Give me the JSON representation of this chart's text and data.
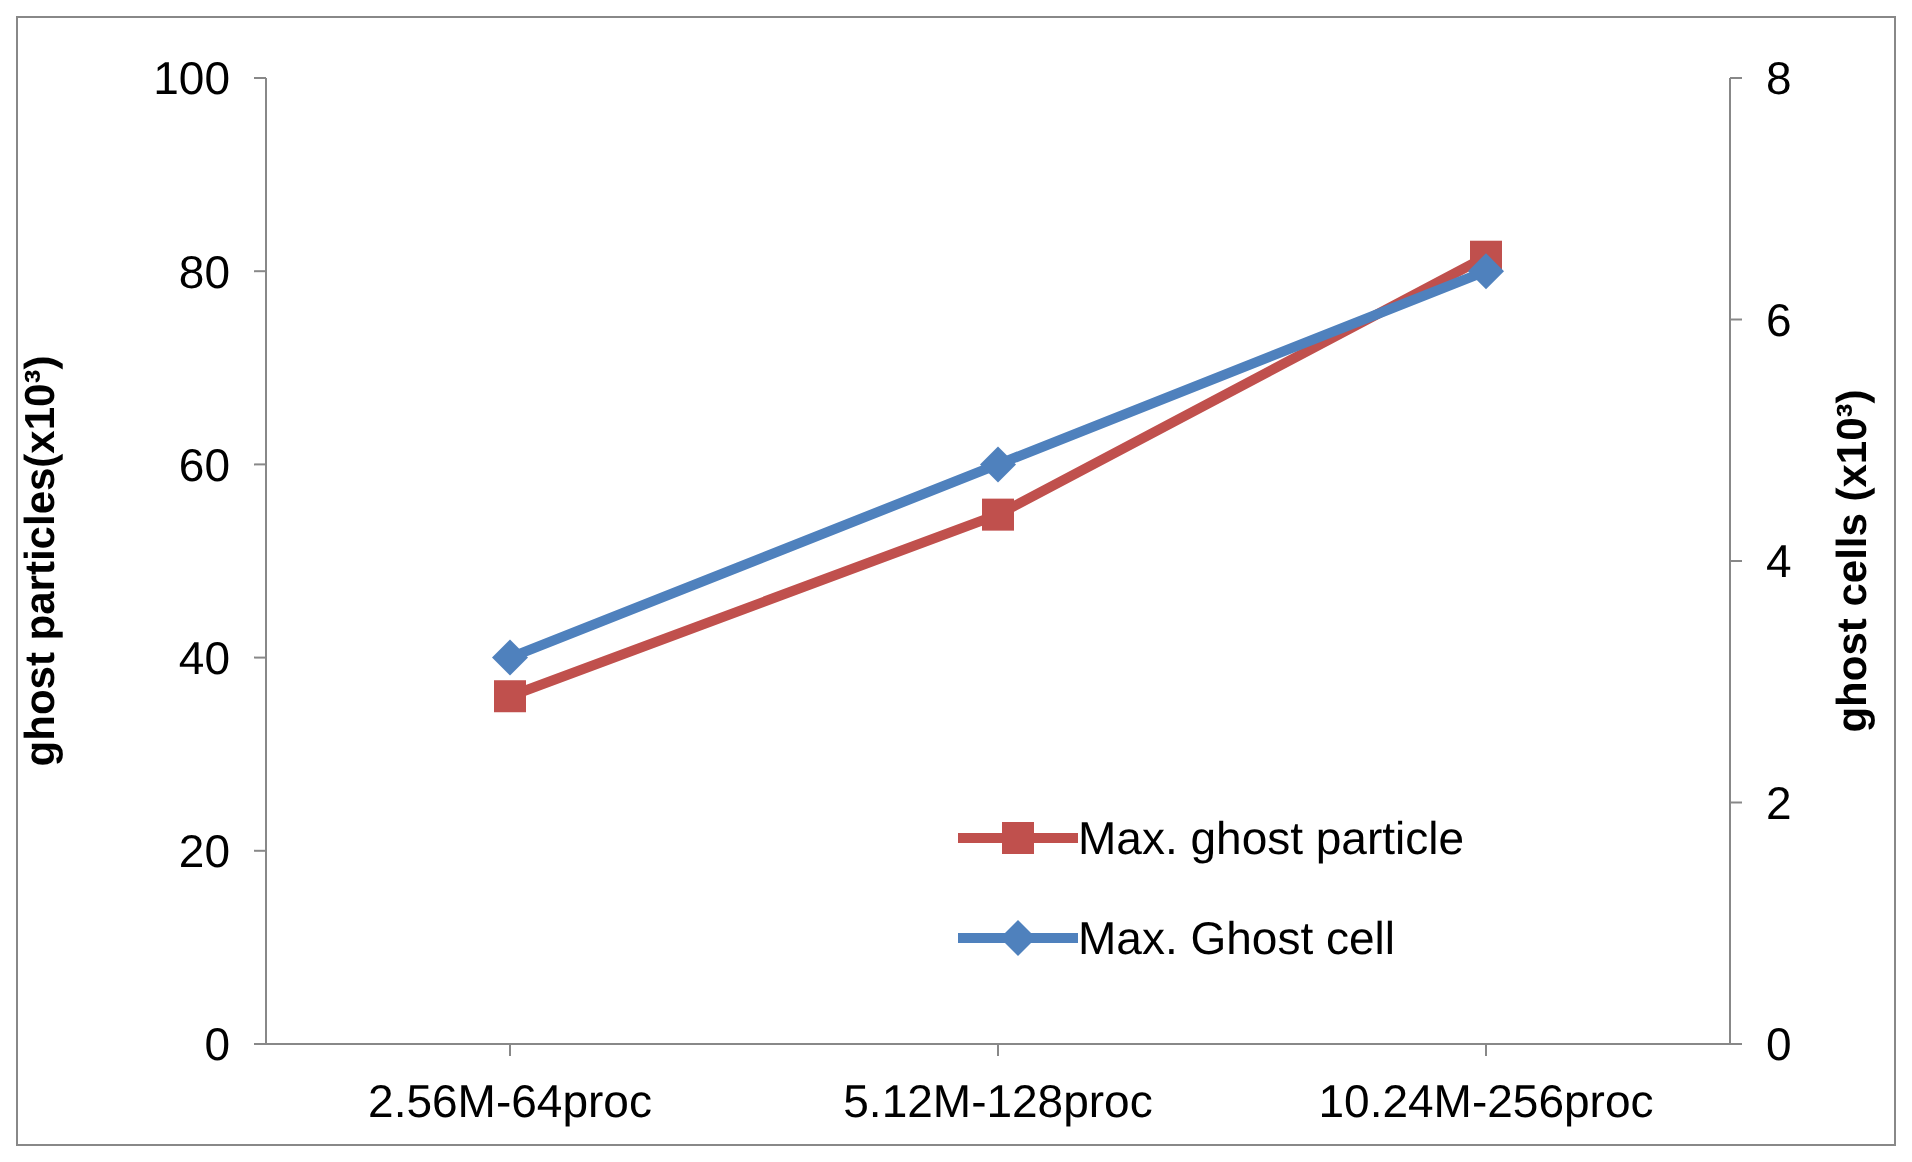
{
  "chart_data": {
    "type": "line",
    "categories": [
      "2.56M-64proc",
      "5.12M-128proc",
      "10.24M-256proc"
    ],
    "ylabel": "ghost particles(x10³)",
    "y2label": "ghost cells (x10³)",
    "ylim": [
      0,
      100
    ],
    "yticks": [
      0,
      20,
      40,
      60,
      80,
      100
    ],
    "y2lim": [
      0,
      8
    ],
    "y2ticks": [
      0,
      2,
      4,
      6,
      8
    ],
    "grid": false,
    "legend": "bottom right",
    "series": [
      {
        "name": "Max. ghost particle",
        "color": "#c0504d",
        "values": [
          36,
          54.8,
          81.5
        ],
        "marker": "square"
      },
      {
        "name": "Max. Ghost cell",
        "color": "#4f81bd",
        "values": [
          3.2,
          4.8,
          6.4
        ],
        "marker": "diamond",
        "axis": "y2"
      }
    ]
  }
}
